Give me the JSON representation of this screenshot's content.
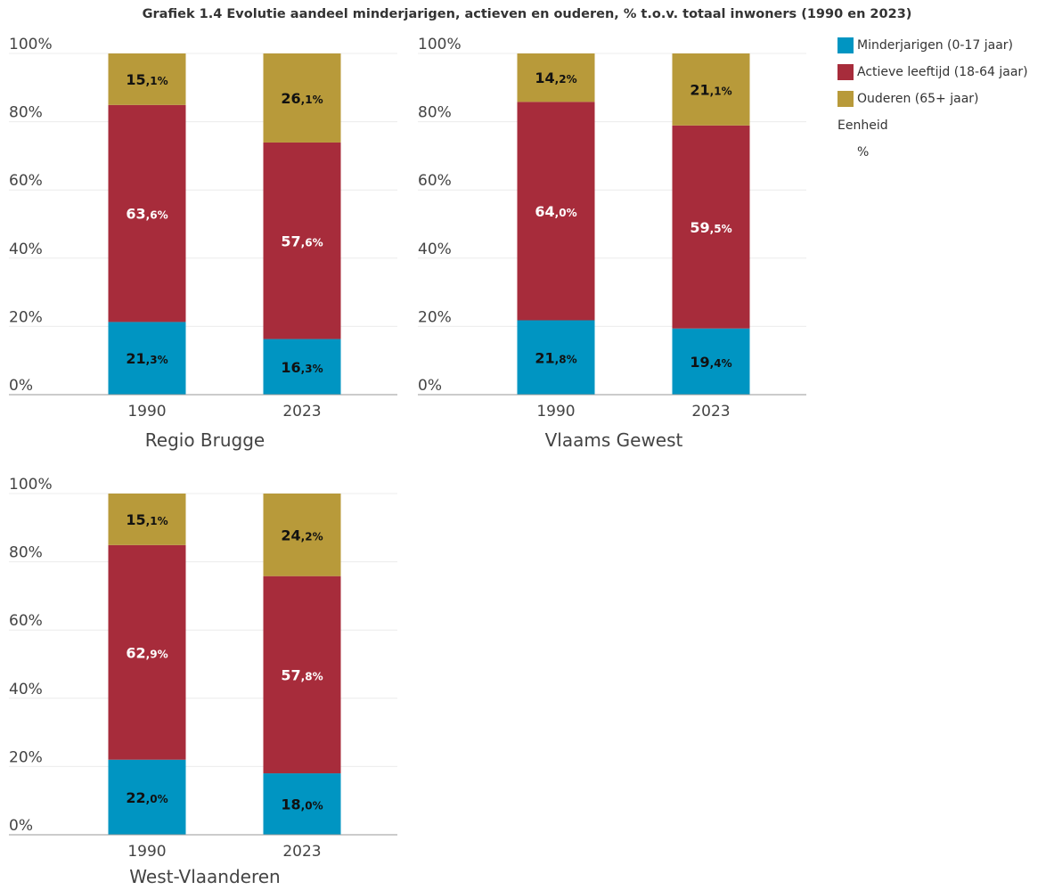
{
  "title": "Grafiek 1.4 Evolutie aandeel minderjarigen, actieven en ouderen, % t.o.v. totaal inwoners (1990 en 2023)",
  "legend": {
    "items": [
      {
        "label": "Minderjarigen (0-17 jaar)",
        "color": "#0095c2"
      },
      {
        "label": "Actieve leeftijd (18-64 jaar)",
        "color": "#a72c3b"
      },
      {
        "label": "Ouderen (65+ jaar)",
        "color": "#b89a3a"
      }
    ],
    "unit_label": "Eenheid",
    "unit_value": "%"
  },
  "chart_data": [
    {
      "type": "bar",
      "stacked": true,
      "title": "Regio Brugge",
      "categories": [
        "1990",
        "2023"
      ],
      "ylim": [
        0,
        100
      ],
      "yticks": [
        "0%",
        "20%",
        "40%",
        "60%",
        "80%",
        "100%"
      ],
      "series": [
        {
          "name": "Minderjarigen (0-17 jaar)",
          "values": [
            21.3,
            16.3
          ],
          "labels": [
            [
              "21",
              ",3%"
            ],
            [
              "16",
              ",3%"
            ]
          ]
        },
        {
          "name": "Actieve leeftijd (18-64 jaar)",
          "values": [
            63.6,
            57.6
          ],
          "labels": [
            [
              "63",
              ",6%"
            ],
            [
              "57",
              ",6%"
            ]
          ]
        },
        {
          "name": "Ouderen (65+ jaar)",
          "values": [
            15.1,
            26.1
          ],
          "labels": [
            [
              "15",
              ",1%"
            ],
            [
              "26",
              ",1%"
            ]
          ]
        }
      ]
    },
    {
      "type": "bar",
      "stacked": true,
      "title": "Vlaams Gewest",
      "categories": [
        "1990",
        "2023"
      ],
      "ylim": [
        0,
        100
      ],
      "yticks": [
        "0%",
        "20%",
        "40%",
        "60%",
        "80%",
        "100%"
      ],
      "series": [
        {
          "name": "Minderjarigen (0-17 jaar)",
          "values": [
            21.8,
            19.4
          ],
          "labels": [
            [
              "21",
              ",8%"
            ],
            [
              "19",
              ",4%"
            ]
          ]
        },
        {
          "name": "Actieve leeftijd (18-64 jaar)",
          "values": [
            64.0,
            59.5
          ],
          "labels": [
            [
              "64",
              ",0%"
            ],
            [
              "59",
              ",5%"
            ]
          ]
        },
        {
          "name": "Ouderen (65+ jaar)",
          "values": [
            14.2,
            21.1
          ],
          "labels": [
            [
              "14",
              ",2%"
            ],
            [
              "21",
              ",1%"
            ]
          ]
        }
      ]
    },
    {
      "type": "bar",
      "stacked": true,
      "title": "West-Vlaanderen",
      "categories": [
        "1990",
        "2023"
      ],
      "ylim": [
        0,
        100
      ],
      "yticks": [
        "0%",
        "20%",
        "40%",
        "60%",
        "80%",
        "100%"
      ],
      "series": [
        {
          "name": "Minderjarigen (0-17 jaar)",
          "values": [
            22.0,
            18.0
          ],
          "labels": [
            [
              "22",
              ",0%"
            ],
            [
              "18",
              ",0%"
            ]
          ]
        },
        {
          "name": "Actieve leeftijd (18-64 jaar)",
          "values": [
            62.9,
            57.8
          ],
          "labels": [
            [
              "62",
              ",9%"
            ],
            [
              "57",
              ",8%"
            ]
          ]
        },
        {
          "name": "Ouderen (65+ jaar)",
          "values": [
            15.1,
            24.2
          ],
          "labels": [
            [
              "15",
              ",1%"
            ],
            [
              "24",
              ",2%"
            ]
          ]
        }
      ]
    }
  ]
}
